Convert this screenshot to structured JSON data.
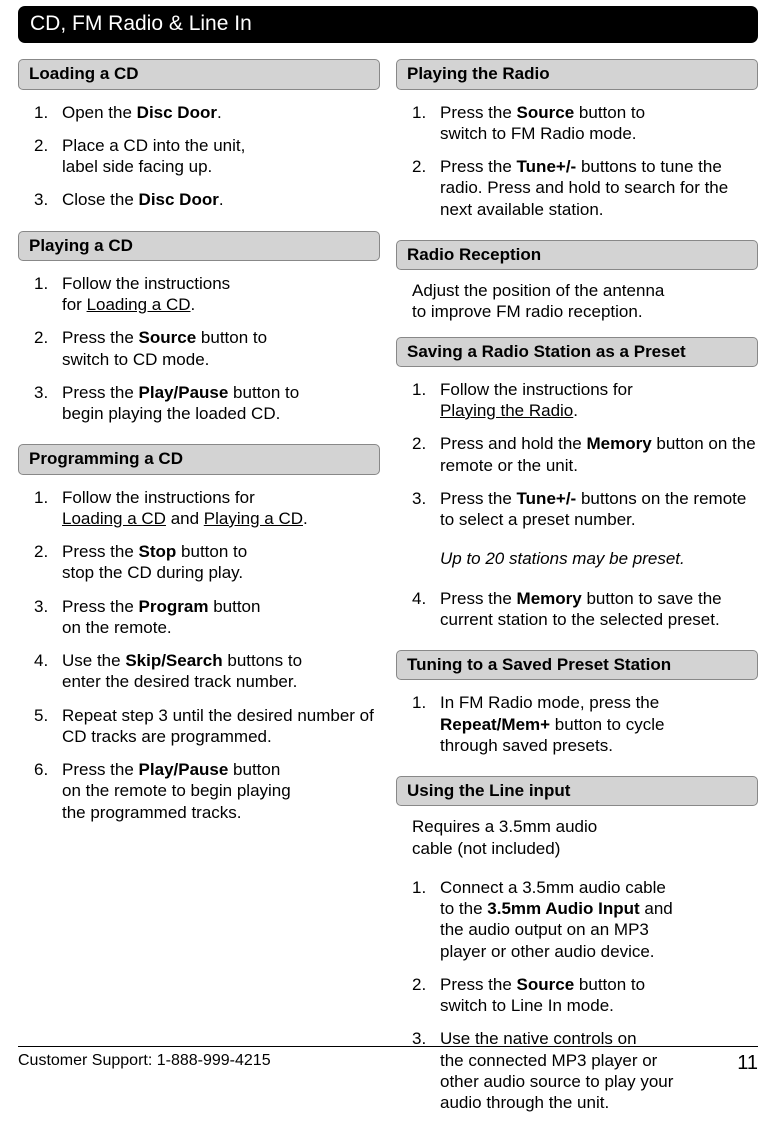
{
  "title": "CD, FM Radio & Line In",
  "footer": {
    "support": "Customer Support: 1-888-999-4215",
    "page": "11"
  },
  "left": {
    "s1": {
      "header": "Loading a CD",
      "i1": {
        "n": "1.",
        "t": "Open the <b>Disc Door</b>."
      },
      "i2": {
        "n": "2.",
        "t": "Place a CD into the unit,<br>label side facing up."
      },
      "i3": {
        "n": "3.",
        "t": "Close the <b>Disc Door</b>."
      }
    },
    "s2": {
      "header": "Playing a CD",
      "i1": {
        "n": "1.",
        "t": "Follow the instructions<br>for <span class=\"u\">Loading a CD</span>."
      },
      "i2": {
        "n": "2.",
        "t": "Press the <b>Source</b> button to<br>switch to CD mode."
      },
      "i3": {
        "n": "3.",
        "t": "Press the <b>Play/Pause</b> button to<br>begin playing the loaded CD."
      }
    },
    "s3": {
      "header": "Programming a CD",
      "i1": {
        "n": "1.",
        "t": "Follow the instructions for<br><span class=\"u\">Loading a CD</span> and <span class=\"u\">Playing a CD</span>."
      },
      "i2": {
        "n": "2.",
        "t": "Press the <b>Stop</b> button to<br>stop the CD during play."
      },
      "i3": {
        "n": "3.",
        "t": "Press the <b>Program</b> button<br>on the remote."
      },
      "i4": {
        "n": "4.",
        "t": "Use the <b>Skip/Search</b> buttons to<br>enter the desired track number."
      },
      "i5": {
        "n": "5.",
        "t": "Repeat step 3 until the desired number of CD tracks are programmed."
      },
      "i6": {
        "n": "6.",
        "t": "Press the <b>Play/Pause</b> button<br>on the remote to begin playing<br>the programmed tracks."
      }
    }
  },
  "right": {
    "s1": {
      "header": "Playing the Radio",
      "i1": {
        "n": "1.",
        "t": "Press the <b>Source</b> button to<br>switch to FM Radio mode."
      },
      "i2": {
        "n": "2.",
        "t": "Press the <b>Tune+/-</b> buttons to tune the radio. Press and hold to search for the next available station."
      }
    },
    "s2": {
      "header": "Radio Reception",
      "text": "Adjust the position of the antenna<br>to improve FM radio reception."
    },
    "s3": {
      "header": "Saving a Radio Station as a Preset",
      "i1": {
        "n": "1.",
        "t": "Follow the instructions for<br><span class=\"u\">Playing the Radio</span>."
      },
      "i2": {
        "n": "2.",
        "t": "Press and hold the <b>Memory</b> button on the remote or the unit."
      },
      "i3": {
        "n": "3.",
        "t": "Press the <b>Tune+/-</b> buttons on the remote to select a preset number."
      },
      "note": "Up to 20 stations may be preset.",
      "i4": {
        "n": "4.",
        "t": "Press the <b>Memory</b> button to save the current station to the selected preset."
      }
    },
    "s4": {
      "header": "Tuning to a Saved Preset Station",
      "i1": {
        "n": "1.",
        "t": "In FM Radio mode, press the<br><b>Repeat/Mem+</b> button to cycle<br>through saved presets."
      }
    },
    "s5": {
      "header": "Using the Line input",
      "text": "Requires a 3.5mm audio<br>cable (not included)",
      "i1": {
        "n": "1.",
        "t": "Connect a 3.5mm audio cable<br>to the <b>3.5mm Audio Input</b> and<br>the audio output on an MP3<br>player or other audio device."
      },
      "i2": {
        "n": "2.",
        "t": "Press the <b>Source</b> button to<br>switch to Line In mode."
      },
      "i3": {
        "n": "3.",
        "t": "Use the native controls on<br>the connected MP3 player or<br>other audio source to play your<br>audio through the unit."
      }
    }
  }
}
